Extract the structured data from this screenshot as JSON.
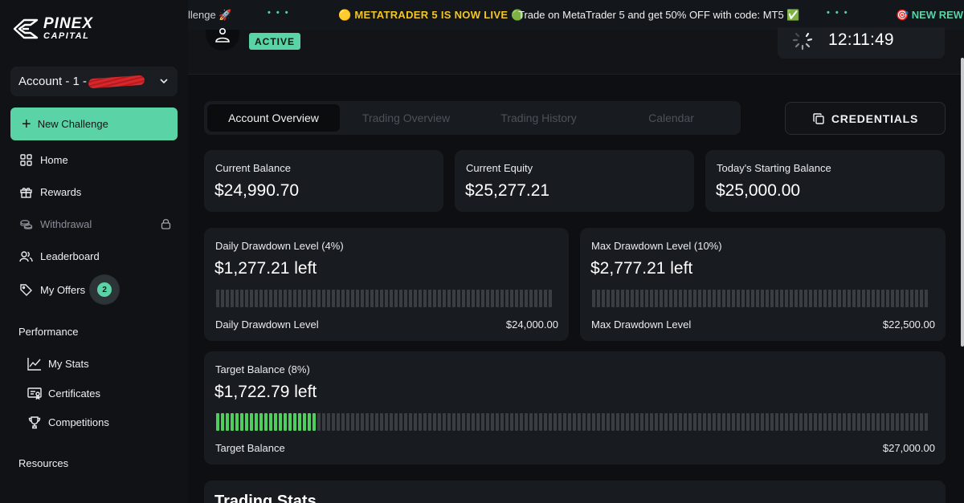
{
  "brand": {
    "line1": "PINEX",
    "line2": "CAPITAL"
  },
  "account": {
    "label": "Account - 1 -"
  },
  "sidebar": {
    "new_challenge": "New Challenge",
    "home": "Home",
    "rewards": "Rewards",
    "withdrawal": "Withdrawal",
    "leaderboard": "Leaderboard",
    "my_offers": "My Offers",
    "my_offers_badge": "2",
    "performance": "Performance",
    "my_stats": "My Stats",
    "certificates": "Certificates",
    "competitions": "Competitions",
    "resources": "Resources"
  },
  "ticker": {
    "frag_left": "llenge 🚀",
    "dots": "•••",
    "headline": "🟡 METATRADER 5 IS NOW LIVE 🟢",
    "message": "Trade on MetaTrader 5 and get 50% OFF with code: MT5 ✅",
    "frag_right": "🎯 NEW REW"
  },
  "header": {
    "status": "ACTIVE",
    "time": "12:11:49"
  },
  "tabs": [
    "Account Overview",
    "Trading Overview",
    "Trading History",
    "Calendar"
  ],
  "credentials_label": "CREDENTIALS",
  "stats": {
    "current_balance": {
      "label": "Current Balance",
      "value": "$24,990.70"
    },
    "current_equity": {
      "label": "Current Equity",
      "value": "$25,277.21"
    },
    "starting_balance": {
      "label": "Today's Starting Balance",
      "value": "$25,000.00"
    }
  },
  "daily_drawdown": {
    "label": "Daily Drawdown Level (4%)",
    "value": "$1,277.21 left",
    "foot_label": "Daily Drawdown Level",
    "foot_value": "$24,000.00",
    "progress": 0
  },
  "max_drawdown": {
    "label": "Max Drawdown Level (10%)",
    "value": "$2,777.21 left",
    "foot_label": "Max Drawdown Level",
    "foot_value": "$22,500.00",
    "progress": 0
  },
  "target": {
    "label": "Target Balance (8%)",
    "value": "$1,722.79 left",
    "foot_label": "Target Balance",
    "foot_value": "$27,000.00",
    "progress": 0.14
  },
  "trading_stats_title": "Trading Stats",
  "colors": {
    "accent": "#5ad3a6",
    "progress": "#4fce5d",
    "bar_off": "#3a3d42",
    "ticker_highlight": "#f3c623"
  }
}
